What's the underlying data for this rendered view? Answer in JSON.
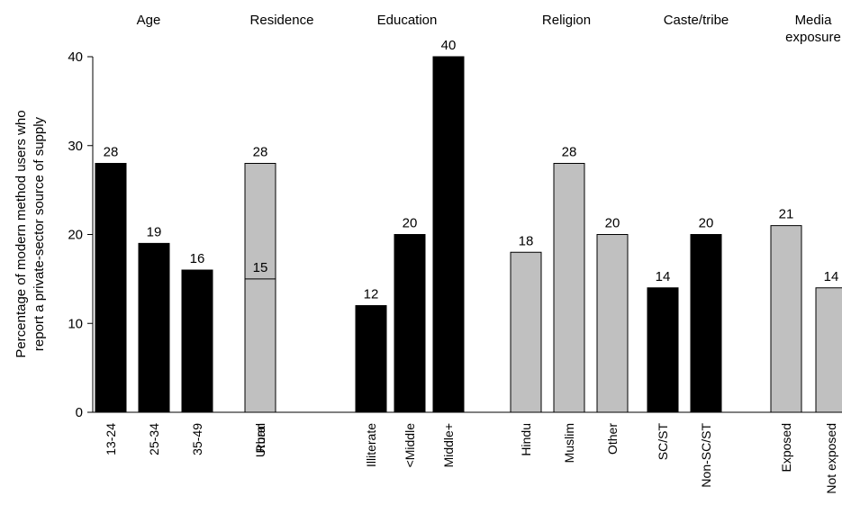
{
  "chart_data": {
    "type": "bar",
    "ylabel_lines": [
      "Percentage of modern method users who",
      "report a private-sector source of supply"
    ],
    "ylim": [
      0,
      40
    ],
    "yticks": [
      0,
      10,
      20,
      30,
      40
    ],
    "grid": false,
    "colors": {
      "dark": "#000000",
      "light": "#c0c0c0"
    },
    "groups": [
      {
        "label_lines": [
          "Age"
        ],
        "bars": [
          {
            "category": "13-24",
            "value": 28,
            "color": "dark"
          },
          {
            "category": "25-34",
            "value": 19,
            "color": "dark"
          },
          {
            "category": "35-49",
            "value": 16,
            "color": "dark"
          }
        ]
      },
      {
        "label_lines": [
          "Residence"
        ],
        "bars": [
          {
            "category": "Urban",
            "value": 28,
            "color": "light"
          },
          {
            "category": "Rural",
            "value": 15,
            "color": "light"
          }
        ]
      },
      {
        "label_lines": [
          "Education"
        ],
        "bars": [
          {
            "category": "Illiterate",
            "value": 12,
            "color": "dark"
          },
          {
            "category": "<Middle",
            "value": 20,
            "color": "dark"
          },
          {
            "category": "Middle+",
            "value": 40,
            "color": "dark"
          }
        ]
      },
      {
        "label_lines": [
          "Religion"
        ],
        "bars": [
          {
            "category": "Hindu",
            "value": 18,
            "color": "light"
          },
          {
            "category": "Muslim",
            "value": 28,
            "color": "light"
          },
          {
            "category": "Other",
            "value": 20,
            "color": "light"
          }
        ]
      },
      {
        "label_lines": [
          "Caste/tribe"
        ],
        "bars": [
          {
            "category": "SC/ST",
            "value": 14,
            "color": "dark"
          },
          {
            "category": "Non-SC/ST",
            "value": 20,
            "color": "dark"
          }
        ]
      },
      {
        "label_lines": [
          "Media",
          "exposure"
        ],
        "bars": [
          {
            "category": "Exposed",
            "value": 21,
            "color": "light"
          },
          {
            "category": "Not exposed",
            "value": 14,
            "color": "light"
          }
        ]
      }
    ]
  }
}
